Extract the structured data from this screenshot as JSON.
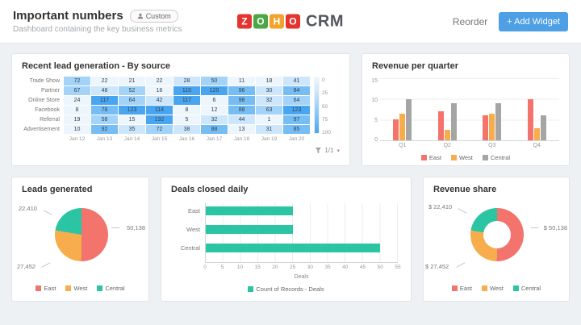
{
  "header": {
    "title": "Important numbers",
    "badge_label": "Custom",
    "subtitle": "Dashboard containing the key business metrics",
    "reorder_label": "Reorder",
    "add_widget_label": "+ Add Widget",
    "logo_letters": [
      {
        "char": "Z",
        "color": "#e4342f"
      },
      {
        "char": "O",
        "color": "#4ba746"
      },
      {
        "char": "H",
        "color": "#efa42d"
      },
      {
        "char": "O",
        "color": "#e4342f"
      }
    ],
    "logo_suffix": "CRM",
    "accent_color": "#4d9fe6"
  },
  "widgets": {
    "lead_heatmap": {
      "title": "Recent lead generation - By source",
      "pagination": "1/1",
      "chart_data": {
        "type": "heatmap",
        "rows": [
          "Trade Show",
          "Partner",
          "Online Store",
          "Facebook",
          "Referral",
          "Advertisement"
        ],
        "columns": [
          "Jan 12",
          "Jan 13",
          "Jan 14",
          "Jan 15",
          "Jan 16",
          "Jan 17",
          "Jan 18",
          "Jan 19",
          "Jan 20"
        ],
        "values": [
          [
            72,
            22,
            21,
            22,
            28,
            50,
            11,
            18,
            41
          ],
          [
            67,
            48,
            52,
            16,
            115,
            120,
            96,
            30,
            84
          ],
          [
            24,
            117,
            64,
            42,
            117,
            6,
            98,
            32,
            64
          ],
          [
            8,
            78,
            123,
            114,
            8,
            12,
            88,
            63,
            123
          ],
          [
            19,
            58,
            15,
            132,
            5,
            32,
            44,
            1,
            97
          ],
          [
            10,
            92,
            35,
            72,
            38,
            88,
            13,
            31,
            85
          ]
        ],
        "scale_ticks": [
          0,
          25,
          50,
          75,
          100
        ],
        "scale_colors": [
          "#edf5fd",
          "#cde6fb",
          "#a3d3f8",
          "#76bdf4",
          "#4aa5f0"
        ]
      }
    },
    "revenue_per_quarter": {
      "title": "Revenue per quarter",
      "chart_data": {
        "type": "bar",
        "categories": [
          "Q1",
          "Q2",
          "Q3",
          "Q4"
        ],
        "series": [
          {
            "name": "East",
            "color": "#f3736d",
            "values": [
              5,
              7,
              6,
              10
            ]
          },
          {
            "name": "West",
            "color": "#f8ad4c",
            "values": [
              6.5,
              2.5,
              6.5,
              3
            ]
          },
          {
            "name": "Central",
            "color": "#a5a5a5",
            "values": [
              10,
              9,
              9,
              6
            ]
          }
        ],
        "y_ticks": [
          0,
          5,
          10,
          15
        ],
        "ylim": [
          0,
          15
        ],
        "legend_position": "bottom"
      }
    },
    "leads_generated": {
      "title": "Leads generated",
      "chart_data": {
        "type": "pie",
        "slices": [
          {
            "name": "East",
            "color": "#f3736d",
            "value": 50138,
            "label": "50,138"
          },
          {
            "name": "West",
            "color": "#f8ad4c",
            "value": 27452,
            "label": "27,452"
          },
          {
            "name": "Central",
            "color": "#2cc5a3",
            "value": 22410,
            "label": "22,410"
          }
        ],
        "legend_position": "bottom"
      }
    },
    "deals_closed": {
      "title": "Deals closed daily",
      "chart_data": {
        "type": "bar-horizontal",
        "categories": [
          "East",
          "West",
          "Central"
        ],
        "values": [
          25,
          25,
          50
        ],
        "bar_color": "#2cc5a3",
        "x_ticks": [
          0,
          5,
          10,
          15,
          20,
          25,
          30,
          35,
          40,
          45,
          50,
          55
        ],
        "xlim": [
          0,
          55
        ],
        "xlabel": "Deals",
        "legend": "Count of Records - Deals"
      }
    },
    "revenue_share": {
      "title": "Revenue share",
      "chart_data": {
        "type": "donut",
        "slices": [
          {
            "name": "East",
            "color": "#f3736d",
            "value": 50138,
            "label": "$ 50,138"
          },
          {
            "name": "West",
            "color": "#f8ad4c",
            "value": 27452,
            "label": "$ 27,452"
          },
          {
            "name": "Central",
            "color": "#2cc5a3",
            "value": 22410,
            "label": "$ 22,410"
          }
        ],
        "legend_position": "bottom"
      }
    }
  }
}
